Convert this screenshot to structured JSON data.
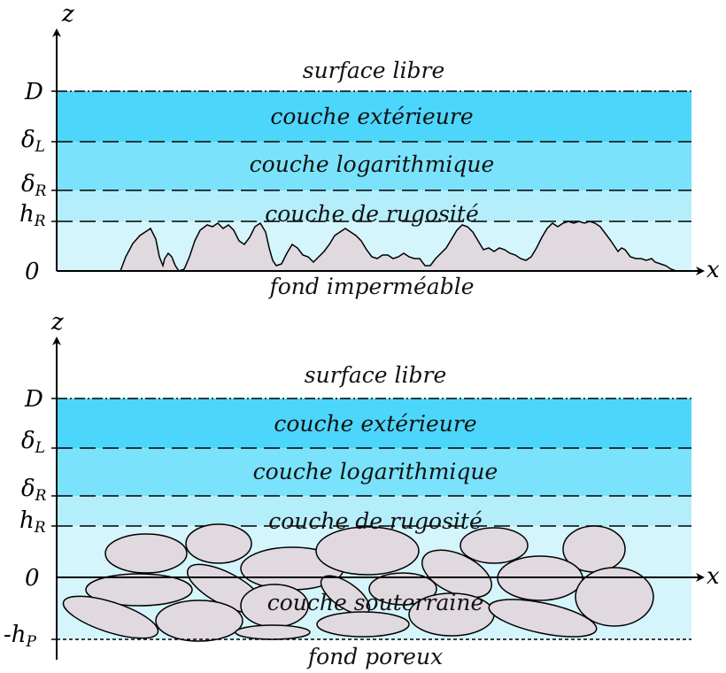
{
  "top": {
    "axis_z": "z",
    "axis_x": "x",
    "free_surface": "surface libre",
    "outer_layer": "couche extérieure",
    "log_layer": "couche logarithmique",
    "roughness_layer": "couche de rugosité",
    "bottom": "fond imperméable",
    "tick_D": "D",
    "tick_deltaL_main": "δ",
    "tick_deltaL_sub": "L",
    "tick_deltaR_main": "δ",
    "tick_deltaR_sub": "R",
    "tick_hR_main": "h",
    "tick_hR_sub": "R",
    "tick_zero": "0"
  },
  "bottom_panel": {
    "axis_z": "z",
    "axis_x": "x",
    "free_surface": "surface libre",
    "outer_layer": "couche extérieure",
    "log_layer": "couche logarithmique",
    "roughness_layer": "couche de rugosité",
    "subsurface_layer": "couche souterraine",
    "bottom": "fond poreux",
    "tick_D": "D",
    "tick_deltaL_main": "δ",
    "tick_deltaL_sub": "L",
    "tick_deltaR_main": "δ",
    "tick_deltaR_sub": "R",
    "tick_hR_main": "h",
    "tick_hR_sub": "R",
    "tick_zero": "0",
    "tick_hP_main": "-h",
    "tick_hP_sub": "P"
  },
  "colors": {
    "outer": "#4dd6fb",
    "log": "#7ae2fb",
    "roughness": "#b5eefb",
    "near_bed": "#d4f5fc",
    "bed": "#e0d9e0",
    "line": "#000000"
  }
}
